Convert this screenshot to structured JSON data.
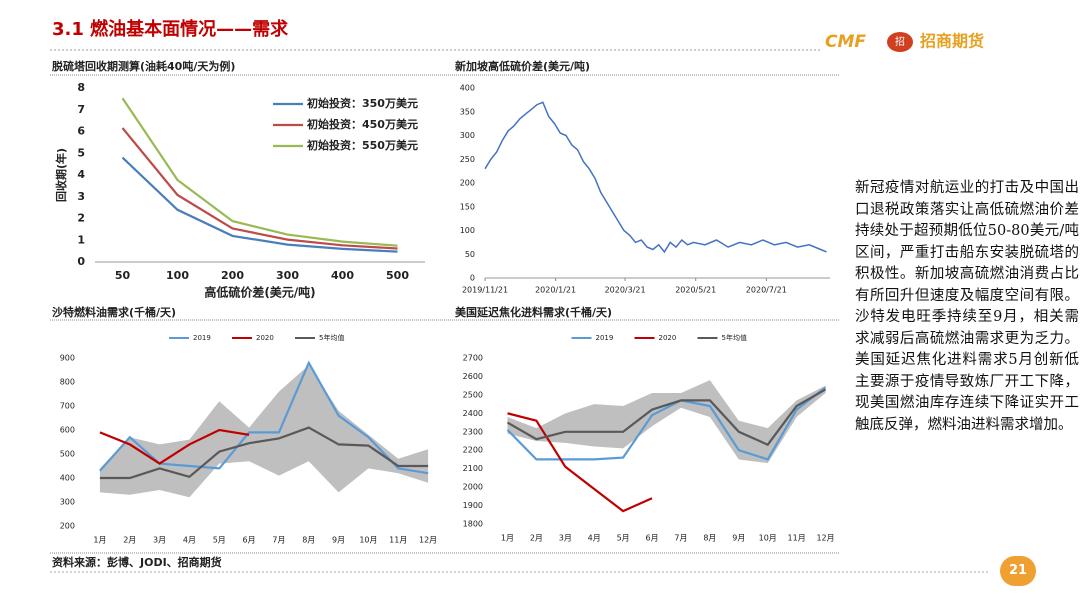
{
  "header": {
    "title": "3.1 燃油基本面情况——需求",
    "logo_mark": "CMF",
    "logo_badge": "招",
    "logo_name": "招商期货"
  },
  "chart_data": [
    {
      "type": "line",
      "title": "脱硫塔回收期测算(油耗40吨/天为例)",
      "xlabel": "高低硫价差(美元/吨)",
      "ylabel": "回收期(年)",
      "categories": [
        "50",
        "100",
        "200",
        "300",
        "400",
        "500"
      ],
      "ylim": [
        0,
        8
      ],
      "yticks": [
        0,
        1,
        2,
        3,
        4,
        5,
        6,
        7,
        8
      ],
      "legend": "upper right",
      "series": [
        {
          "name": "初始投资：350万美元",
          "color": "#4a7ebb",
          "values": [
            4.8,
            2.4,
            1.2,
            0.8,
            0.6,
            0.48
          ]
        },
        {
          "name": "初始投资：450万美元",
          "color": "#be4b48",
          "values": [
            6.16,
            3.08,
            1.54,
            1.03,
            0.77,
            0.62
          ]
        },
        {
          "name": "初始投资：550万美元",
          "color": "#98b954",
          "values": [
            7.53,
            3.77,
            1.88,
            1.26,
            0.94,
            0.75
          ]
        }
      ]
    },
    {
      "type": "line",
      "title": "新加坡高低硫价差(美元/吨)",
      "color": "#4472c4",
      "x": [
        "2019/11/21",
        "2019/11/26",
        "2019/12/1",
        "2019/12/6",
        "2019/12/11",
        "2019/12/16",
        "2019/12/21",
        "2019/12/26",
        "2019/12/31",
        "2020/1/5",
        "2020/1/10",
        "2020/1/15",
        "2020/1/20",
        "2020/1/25",
        "2020/1/30",
        "2020/2/4",
        "2020/2/9",
        "2020/2/14",
        "2020/2/19",
        "2020/2/24",
        "2020/2/29",
        "2020/3/5",
        "2020/3/10",
        "2020/3/15",
        "2020/3/20",
        "2020/3/25",
        "2020/3/30",
        "2020/4/4",
        "2020/4/9",
        "2020/4/14",
        "2020/4/19",
        "2020/4/24",
        "2020/4/29",
        "2020/5/4",
        "2020/5/9",
        "2020/5/14",
        "2020/5/19",
        "2020/5/29",
        "2020/6/8",
        "2020/6/18",
        "2020/6/28",
        "2020/7/8",
        "2020/7/18",
        "2020/7/28",
        "2020/8/7",
        "2020/8/17",
        "2020/8/27",
        "2020/9/6",
        "2020/9/11"
      ],
      "values": [
        230,
        250,
        265,
        290,
        310,
        320,
        335,
        345,
        355,
        365,
        370,
        340,
        325,
        305,
        300,
        280,
        270,
        245,
        230,
        210,
        180,
        160,
        140,
        120,
        100,
        90,
        75,
        80,
        65,
        60,
        70,
        55,
        75,
        65,
        80,
        70,
        75,
        70,
        80,
        65,
        75,
        70,
        80,
        70,
        75,
        65,
        70,
        60,
        55
      ],
      "xlim": [
        "2019/11/21",
        "2020/9/14"
      ],
      "xticks": [
        "2019/11/21",
        "2020/1/21",
        "2020/3/21",
        "2020/5/21",
        "2020/7/21"
      ],
      "ylim": [
        0,
        400
      ],
      "yticks": [
        0,
        50,
        100,
        150,
        200,
        250,
        300,
        350,
        400
      ]
    },
    {
      "type": "line",
      "title": "沙特燃料油需求(千桶/天)",
      "legend": "top",
      "categories": [
        "1月",
        "2月",
        "3月",
        "4月",
        "5月",
        "6月",
        "7月",
        "8月",
        "9月",
        "10月",
        "11月",
        "12月"
      ],
      "ylim": [
        200,
        900
      ],
      "yticks": [
        200,
        300,
        400,
        500,
        600,
        700,
        800,
        900
      ],
      "band": {
        "color": "#bfbfbf",
        "high": [
          440,
          570,
          540,
          560,
          720,
          610,
          760,
          870,
          680,
          580,
          480,
          520
        ],
        "low": [
          340,
          330,
          350,
          320,
          460,
          470,
          410,
          470,
          340,
          440,
          420,
          380
        ]
      },
      "series": [
        {
          "name": "2019",
          "color": "#5b9bd5",
          "values": [
            430,
            570,
            460,
            450,
            440,
            590,
            590,
            880,
            660,
            570,
            440,
            420
          ]
        },
        {
          "name": "2020",
          "color": "#c00000",
          "values": [
            590,
            540,
            460,
            540,
            600,
            580,
            null,
            null,
            null,
            null,
            null,
            null
          ]
        },
        {
          "name": "5年均值",
          "color": "#595959",
          "values": [
            400,
            400,
            440,
            405,
            510,
            545,
            565,
            610,
            540,
            535,
            450,
            450
          ]
        }
      ]
    },
    {
      "type": "line",
      "title": "美国延迟焦化进料需求(千桶/天)",
      "legend": "top",
      "categories": [
        "1月",
        "2月",
        "3月",
        "4月",
        "5月",
        "6月",
        "7月",
        "8月",
        "9月",
        "10月",
        "11月",
        "12月"
      ],
      "ylim": [
        1800,
        2700
      ],
      "yticks": [
        1800,
        1900,
        2000,
        2100,
        2200,
        2300,
        2400,
        2500,
        2600,
        2700
      ],
      "band": {
        "color": "#bfbfbf",
        "high": [
          2380,
          2320,
          2400,
          2450,
          2440,
          2510,
          2510,
          2580,
          2360,
          2320,
          2470,
          2550
        ],
        "low": [
          2290,
          2250,
          2240,
          2220,
          2210,
          2330,
          2430,
          2380,
          2150,
          2130,
          2380,
          2510
        ]
      },
      "series": [
        {
          "name": "2019",
          "color": "#5b9bd5",
          "values": [
            2310,
            2150,
            2150,
            2150,
            2160,
            2390,
            2470,
            2440,
            2200,
            2150,
            2420,
            2540
          ]
        },
        {
          "name": "2020",
          "color": "#c00000",
          "values": [
            2400,
            2360,
            2110,
            1990,
            1870,
            1940,
            null,
            null,
            null,
            null,
            null,
            null
          ]
        },
        {
          "name": "5年均值",
          "color": "#595959",
          "values": [
            2350,
            2260,
            2300,
            2300,
            2300,
            2420,
            2470,
            2470,
            2300,
            2230,
            2440,
            2530
          ]
        }
      ]
    }
  ],
  "source": "资料来源：彭博、JODI、招商期货",
  "commentary": "新冠疫情对航运业的打击及中国出口退税政策落实让高低硫燃油价差持续处于超预期低位50-80美元/吨区间，严重打击船东安装脱硫塔的积极性。新加坡高硫燃油消费占比有所回升但速度及幅度空间有限。沙特发电旺季持续至9月，相关需求减弱后高硫燃油需求更为乏力。美国延迟焦化进料需求5月创新低主要源于疫情导致炼厂开工下降，现美国燃油库存连续下降证实开工触底反弹，燃料油进料需求增加。",
  "page_number": "21"
}
